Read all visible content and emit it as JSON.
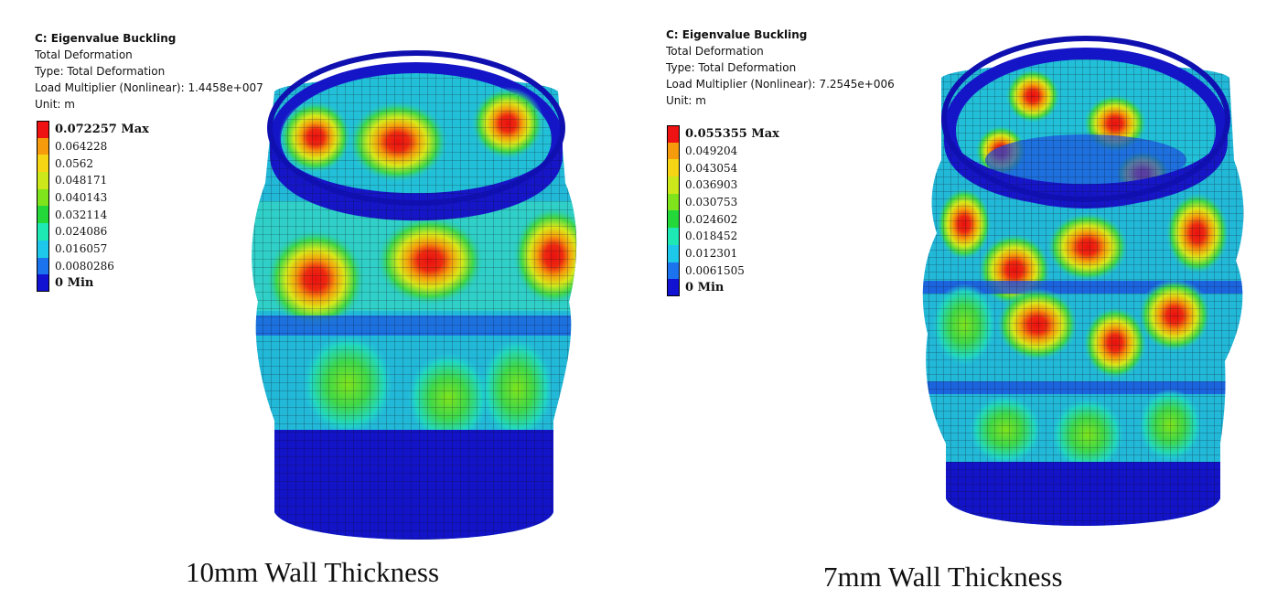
{
  "panels": [
    {
      "analysis_title": "C: Eigenvalue Buckling",
      "result_name": "Total Deformation",
      "type_line": "Type: Total Deformation",
      "load_multiplier_line": "Load Multiplier (Nonlinear): 1.4458e+007",
      "unit_line": "Unit: m",
      "legend": [
        {
          "label": "0.072257 Max",
          "color": "#ee1212",
          "bold": true
        },
        {
          "label": "0.064228",
          "color": "#f59b0c",
          "bold": false
        },
        {
          "label": "0.0562",
          "color": "#f5d514",
          "bold": false
        },
        {
          "label": "0.048171",
          "color": "#cce81a",
          "bold": false
        },
        {
          "label": "0.040143",
          "color": "#7fe41c",
          "bold": false
        },
        {
          "label": "0.032114",
          "color": "#25d83a",
          "bold": false
        },
        {
          "label": "0.024086",
          "color": "#1ee8b4",
          "bold": false
        },
        {
          "label": "0.016057",
          "color": "#1ec8ea",
          "bold": false
        },
        {
          "label": "0.0080286",
          "color": "#1b73ee",
          "bold": false
        },
        {
          "label": "0 Min",
          "color": "#1212d2",
          "bold": true
        }
      ],
      "caption": "10mm Wall Thickness"
    },
    {
      "analysis_title": "C: Eigenvalue Buckling",
      "result_name": "Total Deformation",
      "type_line": "Type: Total Deformation",
      "load_multiplier_line": "Load Multiplier (Nonlinear): 7.2545e+006",
      "unit_line": "Unit: m",
      "legend": [
        {
          "label": "0.055355 Max",
          "color": "#ee1212",
          "bold": true
        },
        {
          "label": "0.049204",
          "color": "#f59b0c",
          "bold": false
        },
        {
          "label": "0.043054",
          "color": "#f5d514",
          "bold": false
        },
        {
          "label": "0.036903",
          "color": "#cce81a",
          "bold": false
        },
        {
          "label": "0.030753",
          "color": "#7fe41c",
          "bold": false
        },
        {
          "label": "0.024602",
          "color": "#25d83a",
          "bold": false
        },
        {
          "label": "0.018452",
          "color": "#1ee8b4",
          "bold": false
        },
        {
          "label": "0.012301",
          "color": "#1ec8ea",
          "bold": false
        },
        {
          "label": "0.0061505",
          "color": "#1b73ee",
          "bold": false
        },
        {
          "label": "0 Min",
          "color": "#1212d2",
          "bold": true
        }
      ],
      "caption": "7mm Wall Thickness"
    }
  ]
}
